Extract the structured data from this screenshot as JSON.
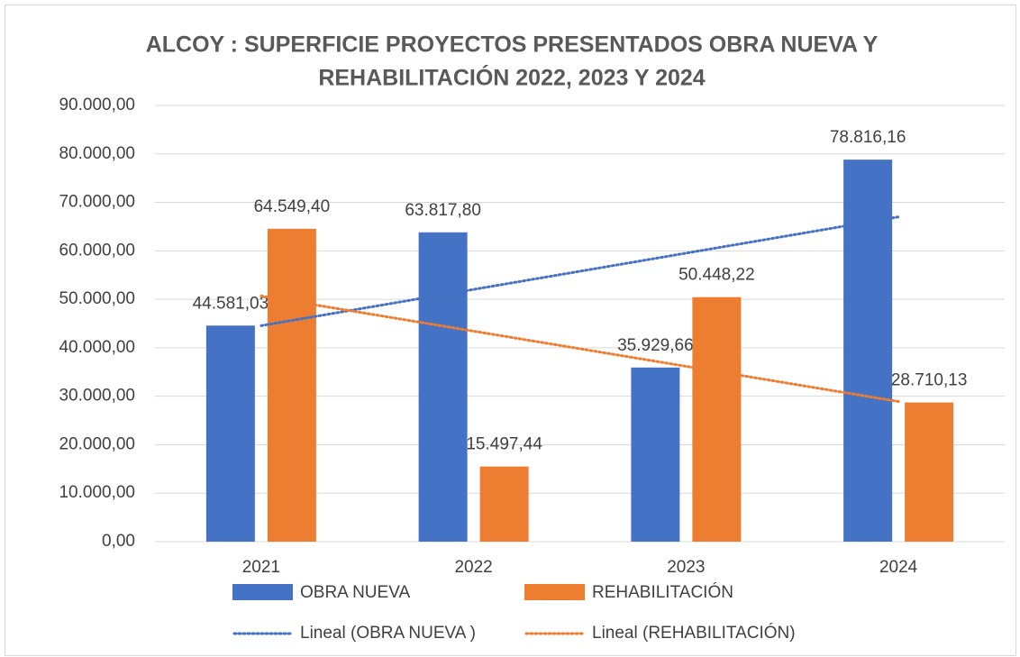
{
  "chart_data": {
    "type": "bar",
    "title": [
      "ALCOY : SUPERFICIE PROYECTOS PRESENTADOS OBRA NUEVA Y",
      "REHABILITACIÓN  2022, 2023 Y 2024"
    ],
    "categories": [
      "2021",
      "2022",
      "2023",
      "2024"
    ],
    "series": [
      {
        "name": "OBRA NUEVA",
        "color": "#4472c4",
        "values": [
          44581.03,
          63817.8,
          35929.66,
          78816.16
        ],
        "value_labels": [
          "44.581,03",
          "63.817,80",
          "35.929,66",
          "78.816,16"
        ],
        "trendline": {
          "type": "linear",
          "name": "Lineal (OBRA NUEVA )"
        }
      },
      {
        "name": "REHABILITACIÓN",
        "color": "#ed7d31",
        "values": [
          64549.4,
          15497.44,
          50448.22,
          28710.13
        ],
        "value_labels": [
          "64.549,40",
          "15.497,44",
          "50.448,22",
          "28.710,13"
        ],
        "trendline": {
          "type": "linear",
          "name": "Lineal (REHABILITACIÓN)"
        }
      }
    ],
    "ylim": [
      0,
      90000
    ],
    "yticks": [
      {
        "value": 0,
        "label": "0,00"
      },
      {
        "value": 10000,
        "label": "10.000,00"
      },
      {
        "value": 20000,
        "label": "20.000,00"
      },
      {
        "value": 30000,
        "label": "30.000,00"
      },
      {
        "value": 40000,
        "label": "40.000,00"
      },
      {
        "value": 50000,
        "label": "50.000,00"
      },
      {
        "value": 60000,
        "label": "60.000,00"
      },
      {
        "value": 70000,
        "label": "70.000,00"
      },
      {
        "value": 80000,
        "label": "80.000,00"
      },
      {
        "value": 90000,
        "label": "90.000,00"
      }
    ],
    "grid": true,
    "legend": "bottom"
  }
}
